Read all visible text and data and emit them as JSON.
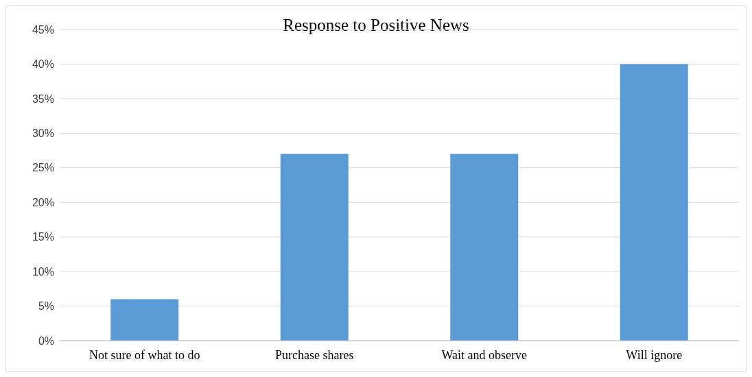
{
  "chart_data": {
    "type": "bar",
    "title": "Response to Positive News",
    "categories": [
      "Not sure of what to do",
      "Purchase shares",
      "Wait and observe",
      "Will ignore"
    ],
    "values": [
      6,
      27,
      27,
      40
    ],
    "color": "#5b9bd5",
    "ylim": [
      0,
      45
    ],
    "yticks": [
      {
        "value": 0,
        "label": "0%"
      },
      {
        "value": 5,
        "label": "5%"
      },
      {
        "value": 10,
        "label": "10%"
      },
      {
        "value": 15,
        "label": "15%"
      },
      {
        "value": 20,
        "label": "20%"
      },
      {
        "value": 25,
        "label": "25%"
      },
      {
        "value": 30,
        "label": "30%"
      },
      {
        "value": 35,
        "label": "35%"
      },
      {
        "value": 40,
        "label": "40%"
      },
      {
        "value": 45,
        "label": "45%"
      }
    ],
    "grid": "y"
  }
}
